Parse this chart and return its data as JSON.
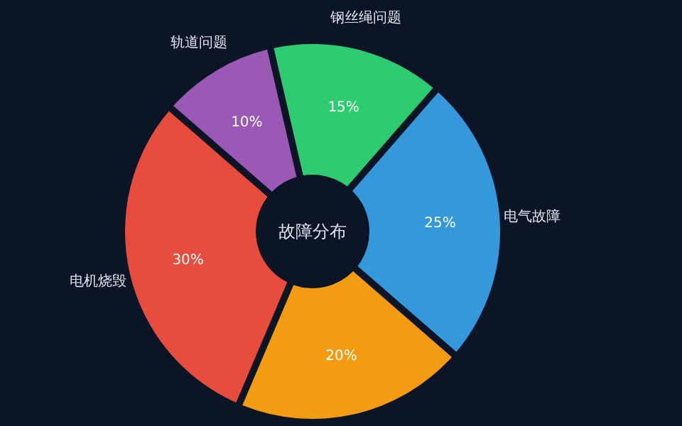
{
  "chart_data": {
    "type": "donut",
    "title": "故障分布",
    "categories": [
      "电气故障",
      null,
      "电机烧毁",
      "轨道问题",
      "钢丝绳问题"
    ],
    "values": [
      25,
      20,
      30,
      10,
      15
    ],
    "colors": [
      "#3498db",
      "#f39c12",
      "#e74c3c",
      "#9b59b6",
      "#2ecc71"
    ],
    "value_labels": [
      "25%",
      "20%",
      "30%",
      "10%",
      "15%"
    ]
  }
}
